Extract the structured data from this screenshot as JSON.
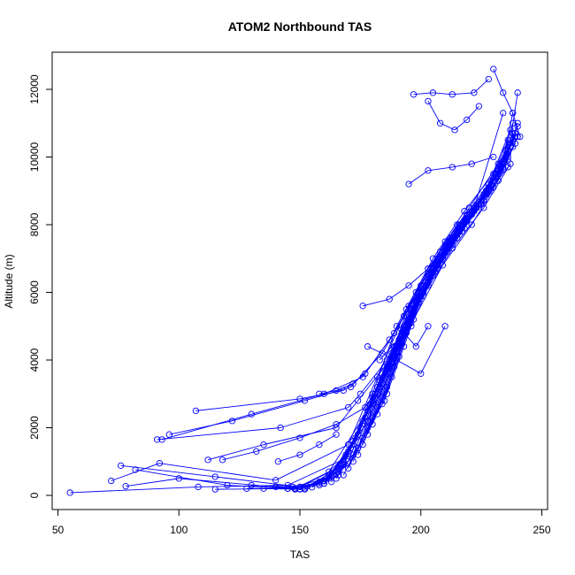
{
  "chart_data": {
    "type": "scatter",
    "title": "ATOM2 Northbound TAS",
    "xlabel": "TAS",
    "ylabel": "Altitude (m)",
    "xlim": [
      50,
      250
    ],
    "ylim": [
      0,
      13000
    ],
    "x_ticks": [
      50,
      100,
      150,
      200,
      250
    ],
    "y_ticks": [
      0,
      2000,
      4000,
      6000,
      8000,
      10000,
      12000
    ],
    "grid": false,
    "legend": "none",
    "color": "#0000ff",
    "marker": "open-circle",
    "series": [
      {
        "x": [
          55,
          108,
          145,
          172,
          185,
          192,
          200,
          212,
          225,
          233,
          238
        ],
        "y": [
          80,
          250,
          300,
          1200,
          2800,
          4500,
          6200,
          7600,
          8600,
          9700,
          11000
        ]
      },
      {
        "x": [
          72,
          92,
          140,
          170,
          182,
          194,
          205,
          218,
          230,
          236
        ],
        "y": [
          430,
          950,
          450,
          1500,
          3500,
          5500,
          7000,
          8400,
          9500,
          10500
        ]
      },
      {
        "x": [
          76,
          115,
          150,
          168,
          180,
          190,
          203,
          215,
          228,
          238
        ],
        "y": [
          880,
          550,
          250,
          900,
          3000,
          5000,
          6700,
          8000,
          9000,
          10700
        ]
      },
      {
        "x": [
          78,
          100,
          148,
          162,
          178,
          188,
          198,
          210,
          222,
          234
        ],
        "y": [
          270,
          500,
          200,
          700,
          2500,
          4200,
          6000,
          7500,
          8500,
          11300
        ]
      },
      {
        "x": [
          82,
          120,
          152,
          166,
          183,
          195,
          208,
          220,
          232,
          239
        ],
        "y": [
          760,
          300,
          180,
          600,
          3200,
          5600,
          7200,
          8500,
          9800,
          10600
        ]
      },
      {
        "x": [
          91,
          142,
          170,
          175,
          186,
          196,
          207,
          219,
          231
        ],
        "y": [
          1650,
          2000,
          2600,
          3000,
          4000,
          5500,
          7000,
          8300,
          9500
        ]
      },
      {
        "x": [
          93,
          130,
          160,
          176,
          187,
          199,
          212,
          224,
          236
        ],
        "y": [
          1650,
          2400,
          3000,
          3500,
          4600,
          6000,
          7400,
          8600,
          9700
        ]
      },
      {
        "x": [
          96,
          122,
          152,
          171,
          184,
          193,
          204,
          216,
          228,
          237
        ],
        "y": [
          1800,
          2200,
          2800,
          3200,
          4200,
          5300,
          6700,
          8000,
          9200,
          10800
        ]
      },
      {
        "x": [
          107,
          150,
          168,
          177,
          189,
          200,
          211,
          223,
          233
        ],
        "y": [
          2500,
          2850,
          3100,
          3600,
          4800,
          6100,
          7300,
          8500,
          9600
        ]
      },
      {
        "x": [
          112,
          135,
          165,
          174,
          185,
          195,
          206,
          218,
          229,
          238
        ],
        "y": [
          1050,
          1500,
          2000,
          2800,
          3800,
          5100,
          6600,
          7900,
          9000,
          10300
        ]
      },
      {
        "x": [
          115,
          145,
          160,
          172,
          182,
          191,
          202,
          214,
          226,
          236
        ],
        "y": [
          180,
          200,
          350,
          1600,
          3000,
          4600,
          6200,
          7600,
          8700,
          9900
        ]
      },
      {
        "x": [
          118,
          132,
          150,
          165,
          177,
          188,
          197,
          209,
          221,
          232,
          240
        ],
        "y": [
          1050,
          1300,
          1700,
          2100,
          2600,
          3800,
          5200,
          6800,
          8000,
          9300,
          10600
        ]
      },
      {
        "x": [
          128,
          148,
          158,
          169,
          180,
          189,
          199,
          210,
          222,
          231
        ],
        "y": [
          200,
          210,
          400,
          1200,
          2800,
          4400,
          6000,
          7300,
          8400,
          9400
        ]
      },
      {
        "x": [
          130,
          147,
          161,
          170,
          178,
          187,
          196,
          205,
          217,
          230,
          239
        ],
        "y": [
          300,
          250,
          500,
          1300,
          2200,
          3600,
          5000,
          6500,
          7800,
          9100,
          10400
        ]
      },
      {
        "x": [
          135,
          150,
          163,
          173,
          181,
          190,
          201,
          213,
          226,
          237
        ],
        "y": [
          200,
          180,
          600,
          1700,
          3000,
          4400,
          5900,
          7300,
          8500,
          9800
        ]
      },
      {
        "x": [
          140,
          153,
          166,
          175,
          183,
          192,
          202,
          212,
          223,
          234,
          240
        ],
        "y": [
          250,
          260,
          800,
          2000,
          3400,
          4900,
          6300,
          7500,
          8600,
          9700,
          10900
        ]
      },
      {
        "x": [
          145,
          158,
          168,
          176,
          184,
          193,
          203,
          215,
          227,
          235
        ],
        "y": [
          200,
          350,
          1000,
          2200,
          3600,
          5000,
          6500,
          7800,
          9000,
          10200
        ]
      },
      {
        "x": [
          148,
          160,
          171,
          179,
          188,
          197,
          207,
          219,
          230,
          239
        ],
        "y": [
          180,
          420,
          1400,
          2700,
          4100,
          5500,
          6800,
          8100,
          9300,
          10600
        ]
      },
      {
        "x": [
          150,
          162,
          172,
          180,
          189,
          199,
          209,
          221,
          232
        ],
        "y": [
          190,
          500,
          1500,
          2900,
          4300,
          5800,
          7100,
          8300,
          9500
        ]
      },
      {
        "x": [
          152,
          164,
          174,
          182,
          191,
          201,
          211,
          222,
          233,
          238
        ],
        "y": [
          210,
          600,
          1800,
          3200,
          4600,
          6000,
          7200,
          8400,
          9600,
          11300
        ]
      },
      {
        "x": [
          155,
          166,
          175,
          183,
          193,
          203,
          214,
          225,
          234
        ],
        "y": [
          240,
          700,
          2000,
          3400,
          4900,
          6300,
          7600,
          8700,
          9800
        ]
      },
      {
        "x": [
          158,
          168,
          177,
          186,
          195,
          205,
          216,
          227,
          236,
          240
        ],
        "y": [
          300,
          900,
          2300,
          3800,
          5200,
          6600,
          7800,
          8900,
          10000,
          11900
        ]
      },
      {
        "x": [
          160,
          170,
          178,
          187,
          196,
          206,
          217,
          228,
          237
        ],
        "y": [
          350,
          1000,
          2500,
          4000,
          5400,
          6800,
          8000,
          9100,
          10300
        ]
      },
      {
        "x": [
          163,
          172,
          180,
          189,
          198,
          208,
          219,
          230,
          238
        ],
        "y": [
          400,
          1200,
          2700,
          4200,
          5700,
          7000,
          8200,
          9300,
          10500
        ]
      },
      {
        "x": [
          165,
          174,
          182,
          191,
          200,
          210,
          221,
          231,
          239
        ],
        "y": [
          500,
          1400,
          3000,
          4500,
          5900,
          7200,
          8400,
          9500,
          10700
        ]
      },
      {
        "x": [
          168,
          176,
          184,
          193,
          203,
          213,
          223,
          232
        ],
        "y": [
          600,
          1700,
          3300,
          4800,
          6200,
          7400,
          8500,
          9600
        ]
      },
      {
        "x": [
          170,
          178,
          186,
          195,
          205,
          215,
          225,
          234,
          240
        ],
        "y": [
          800,
          2000,
          3600,
          5100,
          6500,
          7600,
          8700,
          9800,
          11000
        ]
      },
      {
        "x": [
          172,
          180,
          188,
          197,
          207,
          217,
          227,
          236
        ],
        "y": [
          1000,
          2300,
          3900,
          5400,
          6700,
          7900,
          9000,
          10100
        ]
      },
      {
        "x": [
          174,
          182,
          190,
          199,
          209,
          219,
          229,
          237
        ],
        "y": [
          1200,
          2600,
          4200,
          5700,
          7000,
          8100,
          9200,
          10300
        ]
      },
      {
        "x": [
          176,
          184,
          192,
          201,
          211,
          221,
          231,
          238
        ],
        "y": [
          1500,
          2900,
          4500,
          6000,
          7200,
          8300,
          9400,
          10500
        ]
      },
      {
        "x": [
          178,
          186,
          194,
          203,
          213,
          223,
          232,
          239
        ],
        "y": [
          1800,
          3200,
          4800,
          6300,
          7500,
          8500,
          9600,
          10700
        ]
      },
      {
        "x": [
          180,
          188,
          196,
          205,
          215,
          225,
          234
        ],
        "y": [
          2100,
          3500,
          5100,
          6600,
          7700,
          8700,
          9800
        ]
      },
      {
        "x": [
          182,
          189,
          197,
          206,
          216,
          226,
          235
        ],
        "y": [
          2400,
          3800,
          5400,
          6800,
          7900,
          8900,
          10000
        ]
      },
      {
        "x": [
          184,
          191,
          199,
          208,
          218,
          228,
          236
        ],
        "y": [
          2700,
          4100,
          5700,
          7000,
          8100,
          9100,
          10200
        ]
      },
      {
        "x": [
          186,
          193,
          201,
          210,
          220,
          230,
          237
        ],
        "y": [
          3000,
          4400,
          6000,
          7300,
          8300,
          9300,
          10400
        ]
      },
      {
        "x": [
          176,
          187,
          195,
          203,
          212,
          222,
          231
        ],
        "y": [
          5600,
          5800,
          6200,
          6700,
          7600,
          8500,
          9500
        ]
      },
      {
        "x": [
          195,
          203,
          213,
          221,
          230
        ],
        "y": [
          9200,
          9600,
          9700,
          9800,
          10000
        ]
      },
      {
        "x": [
          197,
          205,
          213,
          222,
          228
        ],
        "y": [
          11850,
          11900,
          11850,
          11900,
          12300
        ]
      },
      {
        "x": [
          203,
          208,
          214,
          219,
          224
        ],
        "y": [
          11650,
          11000,
          10800,
          11100,
          11500
        ]
      },
      {
        "x": [
          178,
          190,
          200,
          210
        ],
        "y": [
          4400,
          4000,
          3600,
          5000
        ]
      },
      {
        "x": [
          183,
          193,
          198,
          203
        ],
        "y": [
          4000,
          4800,
          4400,
          5000
        ]
      },
      {
        "x": [
          158,
          165,
          172
        ],
        "y": [
          3000,
          3100,
          3300
        ]
      },
      {
        "x": [
          141,
          150,
          158,
          165
        ],
        "y": [
          1000,
          1200,
          1500,
          1800
        ]
      },
      {
        "x": [
          230,
          234,
          238,
          241
        ],
        "y": [
          12600,
          11900,
          11300,
          10600
        ]
      }
    ]
  }
}
